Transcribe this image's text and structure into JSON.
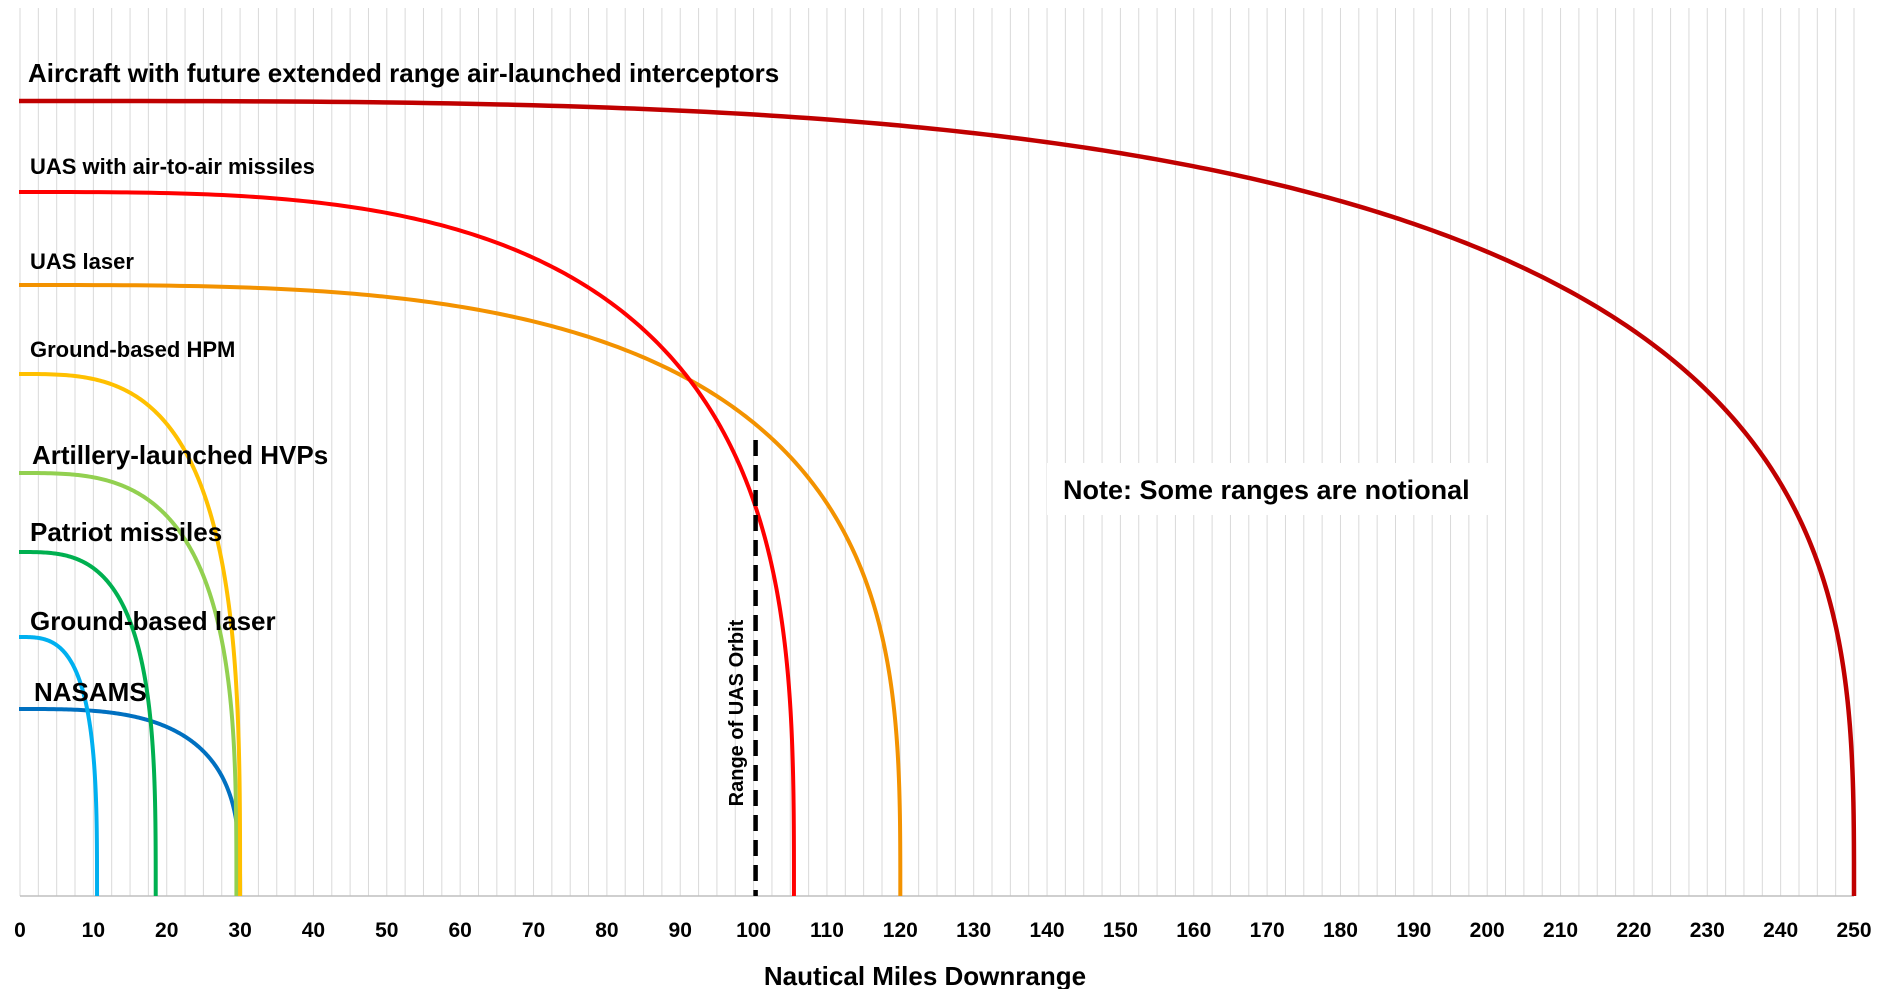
{
  "chart_data": {
    "type": "line",
    "title": "",
    "xlabel": "Nautical Miles Downrange",
    "ylabel": "",
    "xlim": [
      0,
      250
    ],
    "x_ticks": [
      0,
      10,
      20,
      30,
      40,
      50,
      60,
      70,
      80,
      90,
      100,
      110,
      120,
      130,
      140,
      150,
      160,
      170,
      180,
      190,
      200,
      210,
      220,
      230,
      240,
      250
    ],
    "grid": "vertical",
    "legend": "none",
    "series": [
      {
        "name": "Aircraft with future extended range air-launched interceptors",
        "max_range": 250,
        "color": "#c00000"
      },
      {
        "name": "UAS with air-to-air missiles",
        "max_range": 105.5,
        "color": "#ff0000"
      },
      {
        "name": "UAS laser",
        "max_range": 120,
        "color": "#f39200"
      },
      {
        "name": "Ground-based HPM",
        "max_range": 30,
        "color": "#ffc000"
      },
      {
        "name": "Artillery-launched HVPs",
        "max_range": 29.5,
        "color": "#92d050"
      },
      {
        "name": "Patriot missiles",
        "max_range": 18.5,
        "color": "#00b050"
      },
      {
        "name": "Ground-based laser",
        "max_range": 10.5,
        "color": "#00b0f0"
      },
      {
        "name": "NASAMS",
        "max_range": 30,
        "color": "#0070c0"
      }
    ],
    "annotations": [
      {
        "type": "vertical-dashed-line",
        "x": 100,
        "label": "Range of UAS Orbit"
      },
      {
        "type": "note",
        "text": "Note: Some ranges are notional"
      }
    ]
  }
}
